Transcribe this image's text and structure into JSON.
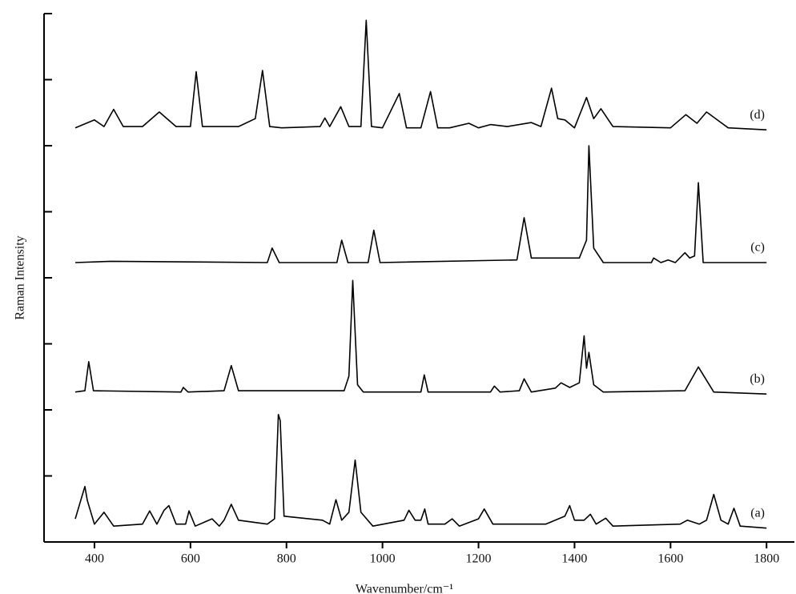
{
  "chart_data": {
    "type": "line",
    "x_label": "Wavenumber/cm⁻¹",
    "y_label": "Raman Intensity",
    "xlim": [
      295,
      1858
    ],
    "xticks": [
      400,
      600,
      800,
      1000,
      1200,
      1400,
      1600,
      1800
    ],
    "ylim": [
      0,
      8
    ],
    "yticks": [
      1,
      2,
      3,
      4,
      5,
      6,
      7,
      8
    ],
    "series": [
      {
        "name": "(d)",
        "color": "#000000",
        "x": [
          360,
          400,
          420,
          440,
          460,
          500,
          535,
          570,
          600,
          612,
          625,
          660,
          700,
          735,
          750,
          765,
          790,
          870,
          880,
          890,
          913,
          930,
          955,
          966,
          977,
          1000,
          1035,
          1050,
          1080,
          1100,
          1115,
          1140,
          1180,
          1200,
          1225,
          1260,
          1310,
          1330,
          1352,
          1365,
          1380,
          1400,
          1425,
          1440,
          1455,
          1480,
          1600,
          1632,
          1655,
          1675,
          1720,
          1800
        ],
        "values": [
          6.27,
          6.39,
          6.29,
          6.55,
          6.29,
          6.29,
          6.51,
          6.29,
          6.29,
          7.12,
          6.29,
          6.29,
          6.29,
          6.41,
          7.14,
          6.29,
          6.27,
          6.29,
          6.42,
          6.29,
          6.59,
          6.29,
          6.29,
          7.9,
          6.29,
          6.27,
          6.79,
          6.27,
          6.27,
          6.82,
          6.27,
          6.27,
          6.34,
          6.27,
          6.32,
          6.29,
          6.35,
          6.29,
          6.87,
          6.41,
          6.39,
          6.27,
          6.73,
          6.41,
          6.56,
          6.29,
          6.27,
          6.47,
          6.34,
          6.51,
          6.27,
          6.24
        ]
      },
      {
        "name": "(c)",
        "color": "#000000",
        "x": [
          360,
          435,
          760,
          770,
          785,
          905,
          915,
          928,
          970,
          982,
          995,
          1280,
          1295,
          1310,
          1410,
          1425,
          1430,
          1440,
          1460,
          1560,
          1565,
          1580,
          1595,
          1610,
          1630,
          1640,
          1650,
          1658,
          1668,
          1800
        ],
        "values": [
          4.23,
          4.25,
          4.23,
          4.45,
          4.23,
          4.23,
          4.57,
          4.23,
          4.23,
          4.72,
          4.23,
          4.27,
          4.91,
          4.3,
          4.3,
          4.57,
          6.0,
          4.45,
          4.23,
          4.23,
          4.3,
          4.23,
          4.27,
          4.23,
          4.38,
          4.3,
          4.33,
          5.44,
          4.23,
          4.23
        ]
      },
      {
        "name": "(b)",
        "color": "#000000",
        "x": [
          360,
          380,
          388,
          398,
          580,
          585,
          595,
          670,
          685,
          700,
          920,
          930,
          938,
          948,
          960,
          1080,
          1087,
          1095,
          1225,
          1233,
          1245,
          1285,
          1295,
          1310,
          1360,
          1372,
          1390,
          1410,
          1420,
          1425,
          1430,
          1440,
          1460,
          1630,
          1658,
          1690,
          1800
        ],
        "values": [
          2.27,
          2.29,
          2.73,
          2.29,
          2.27,
          2.34,
          2.27,
          2.29,
          2.67,
          2.29,
          2.29,
          2.51,
          3.96,
          2.38,
          2.27,
          2.27,
          2.53,
          2.27,
          2.27,
          2.36,
          2.27,
          2.29,
          2.47,
          2.27,
          2.33,
          2.41,
          2.34,
          2.41,
          3.12,
          2.63,
          2.87,
          2.38,
          2.27,
          2.29,
          2.65,
          2.27,
          2.24
        ]
      },
      {
        "name": "(a)",
        "color": "#000000",
        "x": [
          360,
          380,
          385,
          400,
          420,
          440,
          500,
          515,
          530,
          545,
          555,
          570,
          590,
          597,
          610,
          645,
          660,
          670,
          685,
          700,
          760,
          775,
          783,
          787,
          795,
          875,
          890,
          903,
          915,
          930,
          943,
          955,
          980,
          1045,
          1055,
          1068,
          1080,
          1088,
          1095,
          1130,
          1145,
          1160,
          1200,
          1212,
          1230,
          1340,
          1380,
          1390,
          1400,
          1420,
          1433,
          1445,
          1465,
          1480,
          1620,
          1635,
          1660,
          1675,
          1690,
          1705,
          1720,
          1732,
          1745,
          1800
        ],
        "values": [
          0.35,
          0.84,
          0.63,
          0.27,
          0.45,
          0.24,
          0.27,
          0.47,
          0.27,
          0.48,
          0.55,
          0.27,
          0.27,
          0.47,
          0.24,
          0.35,
          0.24,
          0.33,
          0.57,
          0.33,
          0.27,
          0.35,
          1.93,
          1.84,
          0.39,
          0.33,
          0.27,
          0.64,
          0.33,
          0.45,
          1.24,
          0.45,
          0.24,
          0.33,
          0.48,
          0.33,
          0.33,
          0.5,
          0.27,
          0.27,
          0.35,
          0.24,
          0.35,
          0.5,
          0.27,
          0.27,
          0.39,
          0.55,
          0.33,
          0.33,
          0.42,
          0.27,
          0.36,
          0.24,
          0.27,
          0.33,
          0.27,
          0.33,
          0.72,
          0.33,
          0.27,
          0.51,
          0.24,
          0.21
        ]
      }
    ]
  }
}
